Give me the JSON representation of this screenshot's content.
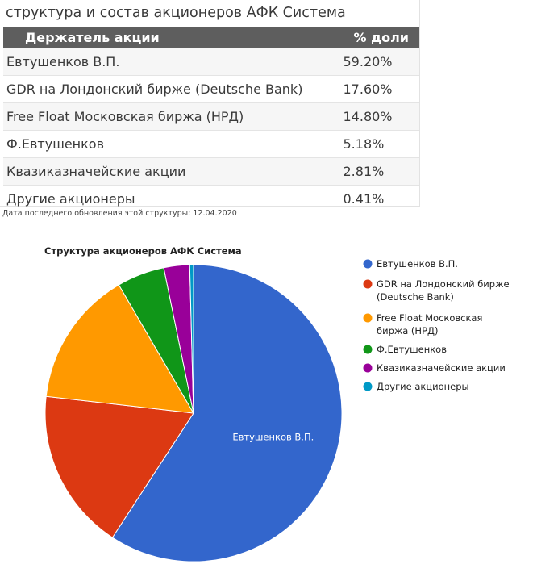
{
  "table": {
    "title": "структура и состав акционеров АФК Система",
    "headers": [
      "Держатель акции",
      "% доли"
    ],
    "rows": [
      {
        "holder": "Евтушенков В.П.",
        "share": "59.20%"
      },
      {
        "holder": "GDR на Лондонский бирже (Deutsche Bank)",
        "share": "17.60%"
      },
      {
        "holder": "Free Float Московская биржа (НРД)",
        "share": "14.80%"
      },
      {
        "holder": "Ф.Евтушенков",
        "share": "5.18%"
      },
      {
        "holder": "Квазиказначейские акции",
        "share": "2.81%"
      },
      {
        "holder": "Другие акционеры",
        "share": "0.41%"
      }
    ],
    "update_note": "Дата последнего обновления этой структуры: 12.04.2020"
  },
  "chart_data": {
    "type": "pie",
    "title": "Структура акционеров АФК Система",
    "categories": [
      "Евтушенков В.П.",
      "GDR на Лондонский бирже (Deutsche Bank)",
      "Free Float Московская биржа (НРД)",
      "Ф.Евтушенков",
      "Квазиказначейские акции",
      "Другие акционеры"
    ],
    "values": [
      59.2,
      17.6,
      14.8,
      5.18,
      2.81,
      0.41
    ],
    "colors": [
      "#3366cc",
      "#dc3912",
      "#ff9900",
      "#109618",
      "#990099",
      "#0099c6"
    ],
    "slice_labels": [
      "Евтушенков В.П.",
      "",
      "",
      "",
      "",
      ""
    ],
    "legend": {
      "position": "right",
      "lines": [
        [
          "Евтушенков В.П."
        ],
        [
          "GDR на Лондонский бирже",
          "(Deutsche Bank)"
        ],
        [
          "Free Float Московская",
          "биржа (НРД)"
        ],
        [
          "Ф.Евтушенков"
        ],
        [
          "Квазиказначейские акции"
        ],
        [
          "Другие акционеры"
        ]
      ]
    }
  }
}
